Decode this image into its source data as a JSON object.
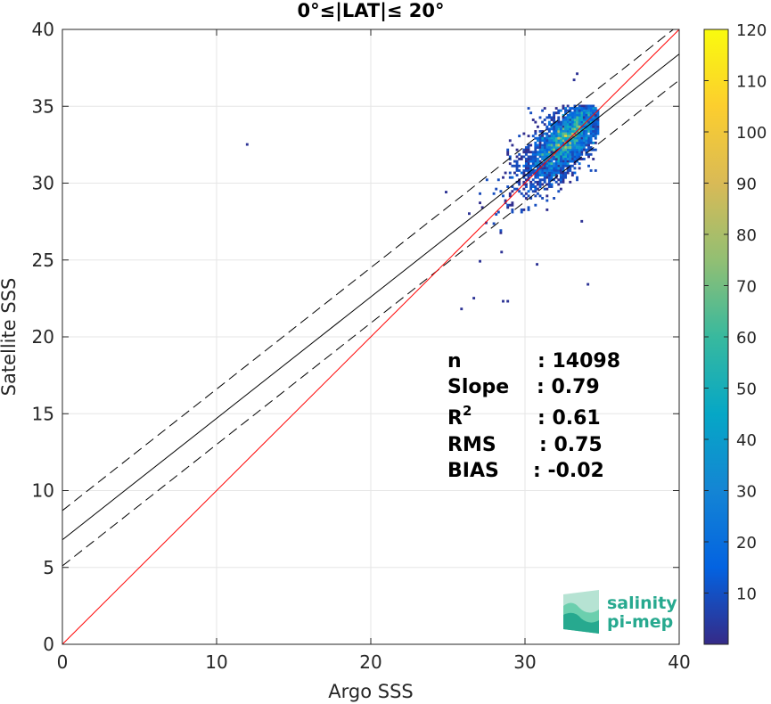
{
  "chart_data": {
    "type": "scatter",
    "title": "0°≤|LAT|≤ 20°",
    "xlabel": "Argo SSS",
    "ylabel": "Satellite SSS",
    "xlim": [
      0,
      40
    ],
    "ylim": [
      0,
      40
    ],
    "xticks": [
      "0",
      "10",
      "20",
      "30",
      "40"
    ],
    "yticks": [
      "0",
      "5",
      "10",
      "15",
      "20",
      "25",
      "30",
      "35",
      "40"
    ],
    "grid": true,
    "lines": {
      "identity": {
        "slope": 1.0,
        "intercept": 0.0,
        "color": "#ff0000"
      },
      "fit": {
        "slope": 0.79,
        "intercept": 6.8,
        "color": "#000000"
      },
      "upper_bound": {
        "slope": 0.79,
        "intercept": 8.7,
        "color": "#000000",
        "style": "dashed"
      },
      "lower_bound": {
        "slope": 0.79,
        "intercept": 5.1,
        "color": "#000000",
        "style": "dashed"
      }
    },
    "density_cluster": {
      "center": [
        32.8,
        33.0
      ],
      "spread_x": 1.2,
      "spread_y": 1.3,
      "correlation": 0.7,
      "range_x": [
        26.5,
        34.8
      ],
      "range_y": [
        26.5,
        35.0
      ]
    },
    "outliers": [
      [
        11.9,
        32.6
      ],
      [
        33.3,
        37.2
      ],
      [
        33.1,
        36.8
      ],
      [
        25.8,
        21.9
      ],
      [
        26.6,
        22.6
      ],
      [
        28.5,
        22.4
      ],
      [
        28.8,
        22.4
      ],
      [
        34.0,
        23.5
      ],
      [
        27.0,
        25.0
      ],
      [
        30.7,
        24.8
      ],
      [
        28.4,
        25.6
      ],
      [
        24.8,
        29.5
      ],
      [
        26.3,
        28.1
      ],
      [
        27.4,
        27.5
      ],
      [
        33.6,
        27.6
      ]
    ],
    "colorbar": {
      "min": 0,
      "max": 120,
      "ticks": [
        "10",
        "20",
        "30",
        "40",
        "50",
        "60",
        "70",
        "80",
        "90",
        "100",
        "110",
        "120"
      ],
      "colormap": "parula"
    }
  },
  "stats": [
    {
      "label": "n",
      "value": ": 14098"
    },
    {
      "label": "Slope",
      "value": ": 0.79"
    },
    {
      "label": "R",
      "sup": "2",
      "value": ": 0.61"
    },
    {
      "label": "RMS",
      "value": ": 0.75"
    },
    {
      "label": "BIAS",
      "value": ": -0.02"
    }
  ],
  "logo": {
    "line1": "salinity",
    "line2": "pi-mep"
  }
}
